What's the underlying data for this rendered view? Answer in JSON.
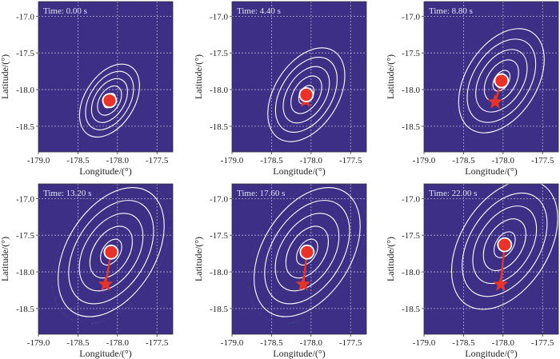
{
  "figure_title": "",
  "colors": {
    "background": "#3d2f86",
    "contour": "#ffffff",
    "marker": "#e8332b",
    "grid": "#d8d8e8",
    "colormap": [
      "#3d2f86",
      "#3b529a",
      "#2f7fa0",
      "#2fa39a",
      "#5cc486",
      "#a6d961",
      "#e6e54a",
      "#f6c93e"
    ]
  },
  "chart_data": [
    {
      "type": "heatmap",
      "time_label": "Time: 0.00 s",
      "xlabel": "Longitude/(°)",
      "ylabel": "Latitude/(°)",
      "xlim": [
        -179.0,
        -177.3
      ],
      "ylim": [
        -18.85,
        -16.8
      ],
      "xticks": [
        -179.0,
        -178.5,
        -178.0,
        -177.5
      ],
      "xtick_labels": [
        "-179.0",
        "-178.5",
        "-178.0",
        "-177.5"
      ],
      "yticks": [
        -17.0,
        -17.5,
        -18.0,
        -18.5
      ],
      "ytick_labels": [
        "-17.0",
        "-17.5",
        "-18.0",
        "-18.5"
      ],
      "grid": true,
      "epicenter": {
        "lon": -178.1,
        "lat": -18.15
      },
      "centroid": {
        "lon": -178.1,
        "lat": -18.15
      },
      "peak_intensity": 0.0,
      "spread": 0.35,
      "contour_levels": 5
    },
    {
      "type": "heatmap",
      "time_label": "Time: 4.40 s",
      "xlabel": "Longitude/(°)",
      "ylabel": "Latitude/(°)",
      "xlim": [
        -179.0,
        -177.3
      ],
      "ylim": [
        -18.85,
        -16.8
      ],
      "xticks": [
        -179.0,
        -178.5,
        -178.0,
        -177.5
      ],
      "xtick_labels": [
        "-179.0",
        "-178.5",
        "-178.0",
        "-177.5"
      ],
      "yticks": [
        -17.0,
        -17.5,
        -18.0,
        -18.5
      ],
      "ytick_labels": [
        "-17.0",
        "-17.5",
        "-18.0",
        "-18.5"
      ],
      "grid": true,
      "epicenter": {
        "lon": -178.07,
        "lat": -18.15
      },
      "centroid": {
        "lon": -178.06,
        "lat": -18.07
      },
      "peak_intensity": 0.3,
      "spread": 0.45,
      "contour_levels": 5
    },
    {
      "type": "heatmap",
      "time_label": "Time: 8.80 s",
      "xlabel": "Longitude/(°)",
      "ylabel": "Latitude/(°)",
      "xlim": [
        -179.0,
        -177.3
      ],
      "ylim": [
        -18.85,
        -16.8
      ],
      "xticks": [
        -179.0,
        -178.5,
        -178.0,
        -177.5
      ],
      "xtick_labels": [
        "-179.0",
        "-178.5",
        "-178.0",
        "-177.5"
      ],
      "yticks": [
        -17.0,
        -17.5,
        -18.0,
        -18.5
      ],
      "ytick_labels": [
        "-17.0",
        "-17.5",
        "-18.0",
        "-18.5"
      ],
      "grid": true,
      "epicenter": {
        "lon": -178.1,
        "lat": -18.17
      },
      "centroid": {
        "lon": -178.02,
        "lat": -17.88
      },
      "peak_intensity": 0.42,
      "spread": 0.5,
      "contour_levels": 5
    },
    {
      "type": "heatmap",
      "time_label": "Time: 13.20 s",
      "xlabel": "Longitude/(°)",
      "ylabel": "Latitude/(°)",
      "xlim": [
        -179.0,
        -177.3
      ],
      "ylim": [
        -18.85,
        -16.8
      ],
      "xticks": [
        -179.0,
        -178.5,
        -178.0,
        -177.5
      ],
      "xtick_labels": [
        "-179.0",
        "-178.5",
        "-178.0",
        "-177.5"
      ],
      "yticks": [
        -17.0,
        -17.5,
        -18.0,
        -18.5
      ],
      "ytick_labels": [
        "-17.0",
        "-17.5",
        "-18.0",
        "-18.5"
      ],
      "grid": true,
      "epicenter": {
        "lon": -178.15,
        "lat": -18.17
      },
      "centroid": {
        "lon": -178.08,
        "lat": -17.73
      },
      "peak_intensity": 1.0,
      "spread": 0.62,
      "contour_levels": 5
    },
    {
      "type": "heatmap",
      "time_label": "Time: 17.60 s",
      "xlabel": "Longitude/(°)",
      "ylabel": "Latitude/(°)",
      "xlim": [
        -179.0,
        -177.3
      ],
      "ylim": [
        -18.85,
        -16.8
      ],
      "xticks": [
        -179.0,
        -178.5,
        -178.0,
        -177.5
      ],
      "xtick_labels": [
        "-179.0",
        "-178.5",
        "-178.0",
        "-177.5"
      ],
      "yticks": [
        -17.0,
        -17.5,
        -18.0,
        -18.5
      ],
      "ytick_labels": [
        "-17.0",
        "-17.5",
        "-18.0",
        "-18.5"
      ],
      "grid": true,
      "epicenter": {
        "lon": -178.1,
        "lat": -18.17
      },
      "centroid": {
        "lon": -178.05,
        "lat": -17.73
      },
      "peak_intensity": 0.55,
      "spread": 0.62,
      "contour_levels": 5
    },
    {
      "type": "heatmap",
      "time_label": "Time: 22.00 s",
      "xlabel": "Longitude/(°)",
      "ylabel": "Latitude/(°)",
      "xlim": [
        -179.0,
        -177.3
      ],
      "ylim": [
        -18.85,
        -16.8
      ],
      "xticks": [
        -179.0,
        -178.5,
        -178.0,
        -177.5
      ],
      "xtick_labels": [
        "-179.0",
        "-178.5",
        "-178.0",
        "-177.5"
      ],
      "yticks": [
        -17.0,
        -17.5,
        -18.0,
        -18.5
      ],
      "ytick_labels": [
        "-17.0",
        "-17.5",
        "-18.0",
        "-18.5"
      ],
      "grid": true,
      "epicenter": {
        "lon": -178.03,
        "lat": -18.17
      },
      "centroid": {
        "lon": -177.98,
        "lat": -17.63
      },
      "peak_intensity": 0.05,
      "spread": 0.62,
      "contour_levels": 5
    }
  ]
}
